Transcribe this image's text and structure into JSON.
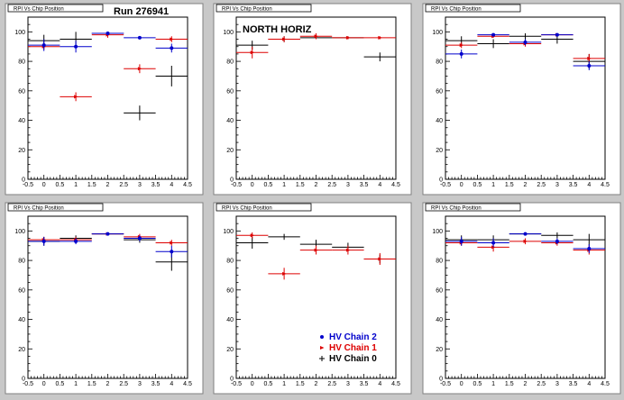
{
  "chart_data": [
    {
      "type": "scatter",
      "title": "RPI Vs Chip Position",
      "label": "Run 276941",
      "xlim": [
        -0.5,
        4.5
      ],
      "ylim": [
        0,
        110
      ],
      "xticks": [
        "-0.5",
        "0",
        "0.5",
        "1",
        "1.5",
        "2",
        "2.5",
        "3",
        "3.5",
        "4",
        "4.5"
      ],
      "yticks": [
        "0",
        "20",
        "40",
        "60",
        "80",
        "100"
      ],
      "series": [
        {
          "name": "HV Chain 2",
          "color": "#0000cc",
          "x": [
            0,
            1,
            2,
            3,
            4
          ],
          "y": [
            91,
            90,
            99,
            96,
            89
          ],
          "yerr": [
            4,
            4,
            1,
            1,
            3
          ]
        },
        {
          "name": "HV Chain 1",
          "color": "#dd0000",
          "x": [
            0,
            1,
            2,
            3,
            4
          ],
          "y": [
            90,
            56,
            98,
            75,
            95
          ],
          "yerr": [
            2,
            3,
            2,
            3,
            2
          ]
        },
        {
          "name": "HV Chain 0",
          "color": "#000000",
          "x": [
            0,
            1,
            2,
            3,
            4
          ],
          "y": [
            94,
            95,
            99,
            45,
            70
          ],
          "yerr": [
            4,
            5,
            1,
            5,
            7
          ]
        }
      ]
    },
    {
      "type": "scatter",
      "title": "RPI Vs Chip Position",
      "label": "NORTH HORIZ",
      "xlim": [
        -0.5,
        4.5
      ],
      "ylim": [
        0,
        110
      ],
      "xticks": [
        "-0.5",
        "0",
        "0.5",
        "1",
        "1.5",
        "2",
        "2.5",
        "3",
        "3.5",
        "4",
        "4.5"
      ],
      "yticks": [
        "0",
        "20",
        "40",
        "60",
        "80",
        "100"
      ],
      "series": [
        {
          "name": "HV Chain 2",
          "color": "#0000cc",
          "x": [],
          "y": [],
          "yerr": []
        },
        {
          "name": "HV Chain 1",
          "color": "#dd0000",
          "x": [
            0,
            1,
            2,
            3,
            4
          ],
          "y": [
            86,
            95,
            97,
            96,
            96
          ],
          "yerr": [
            4,
            2,
            2,
            1,
            1
          ]
        },
        {
          "name": "HV Chain 0",
          "color": "#000000",
          "x": [
            0,
            1,
            2,
            3,
            4
          ],
          "y": [
            91,
            95,
            96,
            96,
            83
          ],
          "yerr": [
            3,
            2,
            1,
            1,
            3
          ]
        }
      ]
    },
    {
      "type": "scatter",
      "title": "RPI Vs Chip Position",
      "label": "",
      "xlim": [
        -0.5,
        4.5
      ],
      "ylim": [
        0,
        110
      ],
      "xticks": [
        "-0.5",
        "0",
        "0.5",
        "1",
        "1.5",
        "2",
        "2.5",
        "3",
        "3.5",
        "4",
        "4.5"
      ],
      "yticks": [
        "0",
        "20",
        "40",
        "60",
        "80",
        "100"
      ],
      "series": [
        {
          "name": "HV Chain 2",
          "color": "#0000cc",
          "x": [
            0,
            1,
            2,
            3,
            4
          ],
          "y": [
            85,
            98,
            93,
            98,
            77
          ],
          "yerr": [
            3,
            1,
            2,
            1,
            3
          ]
        },
        {
          "name": "HV Chain 1",
          "color": "#dd0000",
          "x": [
            0,
            1,
            2,
            3,
            4
          ],
          "y": [
            91,
            97,
            92,
            98,
            82
          ],
          "yerr": [
            2,
            1,
            2,
            1,
            3
          ]
        },
        {
          "name": "HV Chain 0",
          "color": "#000000",
          "x": [
            0,
            1,
            2,
            3,
            4
          ],
          "y": [
            94,
            92,
            97,
            95,
            80
          ],
          "yerr": [
            3,
            3,
            2,
            3,
            5
          ]
        }
      ]
    },
    {
      "type": "scatter",
      "title": "RPI Vs Chip Position",
      "label": "",
      "xlim": [
        -0.5,
        4.5
      ],
      "ylim": [
        0,
        110
      ],
      "xticks": [
        "-0.5",
        "0",
        "0.5",
        "1",
        "1.5",
        "2",
        "2.5",
        "3",
        "3.5",
        "4",
        "4.5"
      ],
      "yticks": [
        "0",
        "20",
        "40",
        "60",
        "80",
        "100"
      ],
      "series": [
        {
          "name": "HV Chain 2",
          "color": "#0000cc",
          "x": [
            0,
            1,
            2,
            3,
            4
          ],
          "y": [
            93,
            93,
            98,
            95,
            86
          ],
          "yerr": [
            3,
            2,
            1,
            2,
            4
          ]
        },
        {
          "name": "HV Chain 1",
          "color": "#dd0000",
          "x": [
            0,
            1,
            2,
            3,
            4
          ],
          "y": [
            94,
            94,
            98,
            96,
            92
          ],
          "yerr": [
            2,
            2,
            1,
            2,
            2
          ]
        },
        {
          "name": "HV Chain 0",
          "color": "#000000",
          "x": [
            0,
            1,
            2,
            3,
            4
          ],
          "y": [
            93,
            95,
            98,
            94,
            79
          ],
          "yerr": [
            3,
            2,
            1,
            2,
            6
          ]
        }
      ]
    },
    {
      "type": "scatter",
      "title": "RPI Vs Chip Position",
      "label": "",
      "xlim": [
        -0.5,
        4.5
      ],
      "ylim": [
        0,
        110
      ],
      "xticks": [
        "-0.5",
        "0",
        "0.5",
        "1",
        "1.5",
        "2",
        "2.5",
        "3",
        "3.5",
        "4",
        "4.5"
      ],
      "yticks": [
        "0",
        "20",
        "40",
        "60",
        "80",
        "100"
      ],
      "legend": {
        "placement": "bottom-right",
        "entries": [
          {
            "name": "HV Chain 2",
            "color": "#0000cc"
          },
          {
            "name": "HV Chain 1",
            "color": "#dd0000"
          },
          {
            "name": "HV Chain 0",
            "color": "#000000"
          }
        ]
      },
      "series": [
        {
          "name": "HV Chain 2",
          "color": "#0000cc",
          "x": [],
          "y": [],
          "yerr": []
        },
        {
          "name": "HV Chain 1",
          "color": "#dd0000",
          "x": [
            0,
            1,
            2,
            3,
            4
          ],
          "y": [
            97,
            71,
            87,
            87,
            81
          ],
          "yerr": [
            2,
            4,
            3,
            3,
            4
          ]
        },
        {
          "name": "HV Chain 0",
          "color": "#000000",
          "x": [
            0,
            1,
            2,
            3,
            4
          ],
          "y": [
            92,
            96,
            91,
            89,
            81
          ],
          "yerr": [
            4,
            2,
            3,
            3,
            3
          ]
        }
      ]
    },
    {
      "type": "scatter",
      "title": "RPI Vs Chip Position",
      "label": "",
      "xlim": [
        -0.5,
        4.5
      ],
      "ylim": [
        0,
        110
      ],
      "xticks": [
        "-0.5",
        "0",
        "0.5",
        "1",
        "1.5",
        "2",
        "2.5",
        "3",
        "3.5",
        "4",
        "4.5"
      ],
      "yticks": [
        "0",
        "20",
        "40",
        "60",
        "80",
        "100"
      ],
      "series": [
        {
          "name": "HV Chain 2",
          "color": "#0000cc",
          "x": [
            0,
            1,
            2,
            3,
            4
          ],
          "y": [
            93,
            92,
            98,
            93,
            88
          ],
          "yerr": [
            3,
            3,
            1,
            2,
            3
          ]
        },
        {
          "name": "HV Chain 1",
          "color": "#dd0000",
          "x": [
            0,
            1,
            2,
            3,
            4
          ],
          "y": [
            92,
            89,
            93,
            92,
            87
          ],
          "yerr": [
            2,
            3,
            2,
            2,
            3
          ]
        },
        {
          "name": "HV Chain 0",
          "color": "#000000",
          "x": [
            0,
            1,
            2,
            3,
            4
          ],
          "y": [
            94,
            94,
            98,
            97,
            94
          ],
          "yerr": [
            3,
            3,
            1,
            2,
            4
          ]
        }
      ]
    }
  ]
}
